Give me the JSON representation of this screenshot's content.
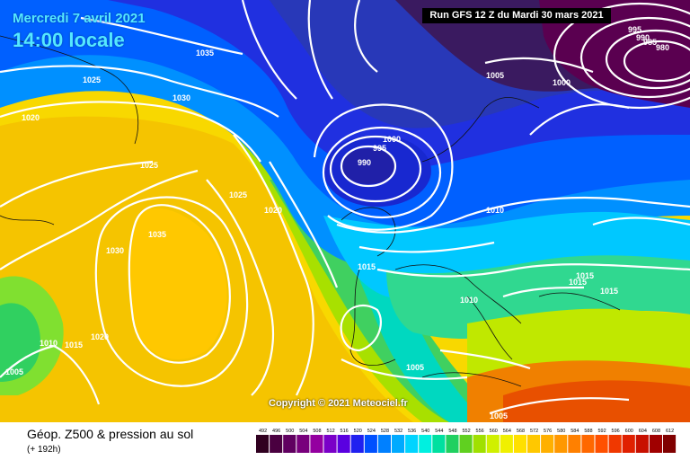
{
  "header": {
    "date": "Mercredi 7 avril 2021",
    "time": "14:00 locale",
    "run": "Run GFS 12 Z du Mardi 30 mars 2021"
  },
  "copyright": "Copyright © 2021 Meteociel.fr",
  "footer": {
    "title": "Géop. Z500 & pression au sol",
    "subtitle": "(+ 192h)"
  },
  "isobar_labels": [
    "1035",
    "1025",
    "1030",
    "1020",
    "1025",
    "1025",
    "1020",
    "1030",
    "1035",
    "1010",
    "1015",
    "1020",
    "1005",
    "1000",
    "995",
    "990",
    "1005",
    "1000",
    "995",
    "990",
    "985",
    "980",
    "1010",
    "1015",
    "1015",
    "1015",
    "1015",
    "1010",
    "1005",
    "1005"
  ],
  "legend": {
    "values": [
      "492",
      "496",
      "500",
      "504",
      "508",
      "512",
      "516",
      "520",
      "524",
      "528",
      "532",
      "536",
      "540",
      "544",
      "548",
      "552",
      "556",
      "560",
      "564",
      "568",
      "572",
      "576",
      "580",
      "584",
      "588",
      "592",
      "596",
      "600",
      "604",
      "608",
      "612"
    ],
    "colors": [
      "#300020",
      "#4a0040",
      "#600060",
      "#78007c",
      "#9400a0",
      "#7a00c8",
      "#5a00e0",
      "#2020f0",
      "#0050ff",
      "#0080ff",
      "#00aaff",
      "#00d4ff",
      "#00f0e0",
      "#00e0a0",
      "#20d060",
      "#60d020",
      "#a0e000",
      "#d0f000",
      "#f0f000",
      "#ffe000",
      "#ffc800",
      "#ffb000",
      "#ff9800",
      "#ff8000",
      "#ff6800",
      "#ff5000",
      "#f03800",
      "#e02000",
      "#c81000",
      "#a00000",
      "#800000"
    ]
  }
}
